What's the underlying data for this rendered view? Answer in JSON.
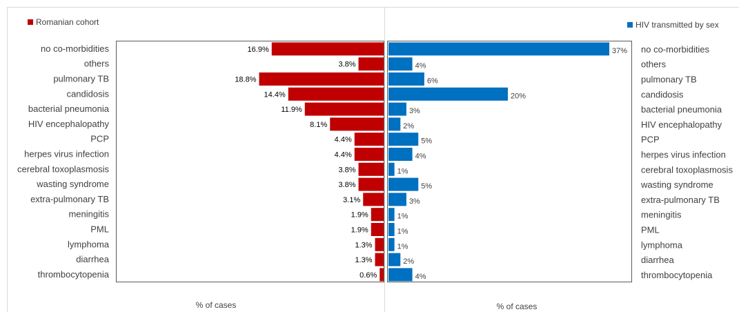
{
  "chart_data": [
    {
      "type": "bar",
      "orientation": "horizontal",
      "direction": "left",
      "categories": [
        "no co-morbidities",
        "others",
        "pulmonary TB",
        "candidosis",
        "bacterial pneumonia",
        "HIV encephalopathy",
        "PCP",
        "herpes virus infection",
        "cerebral toxoplasmosis",
        "wasting syndrome",
        "extra-pulmonary TB",
        "meningitis",
        "PML",
        "lymphoma",
        "diarrhea",
        "thrombocytopenia"
      ],
      "series": [
        {
          "name": "Romanian cohort",
          "color": "#c00000",
          "values": [
            16.9,
            3.8,
            18.8,
            14.4,
            11.9,
            8.1,
            4.4,
            4.4,
            3.8,
            3.8,
            3.1,
            1.9,
            1.9,
            1.3,
            1.3,
            0.6
          ],
          "labels": [
            "16.9%",
            "3.8%",
            "18.8%",
            "14.4%",
            "11.9%",
            "8.1%",
            "4.4%",
            "4.4%",
            "3.8%",
            "3.8%",
            "3.1%",
            "1.9%",
            "1.9%",
            "1.3%",
            "1.3%",
            "0.6%"
          ]
        }
      ],
      "xlabel": "% of cases",
      "legend_position": "top-left"
    },
    {
      "type": "bar",
      "orientation": "horizontal",
      "direction": "right",
      "categories": [
        "no co-morbidities",
        "others",
        "pulmonary TB",
        "candidosis",
        "bacterial pneumonia",
        "HIV encephalopathy",
        "PCP",
        "herpes virus infection",
        "cerebral toxoplasmosis",
        "wasting syndrome",
        "extra-pulmonary TB",
        "meningitis",
        "PML",
        "lymphoma",
        "diarrhea",
        "thrombocytopenia"
      ],
      "series": [
        {
          "name": "HIV transmitted by sex",
          "color": "#0070c0",
          "values": [
            37,
            4,
            6,
            20,
            3,
            2,
            5,
            4,
            1,
            5,
            3,
            1,
            1,
            1,
            2,
            4
          ],
          "labels": [
            "37%",
            "4%",
            "6%",
            "20%",
            "3%",
            "2%",
            "5%",
            "4%",
            "1%",
            "5%",
            "3%",
            "1%",
            "1%",
            "1%",
            "2%",
            "4%"
          ]
        }
      ],
      "xlabel": "% of cases",
      "legend_position": "top-right"
    }
  ]
}
